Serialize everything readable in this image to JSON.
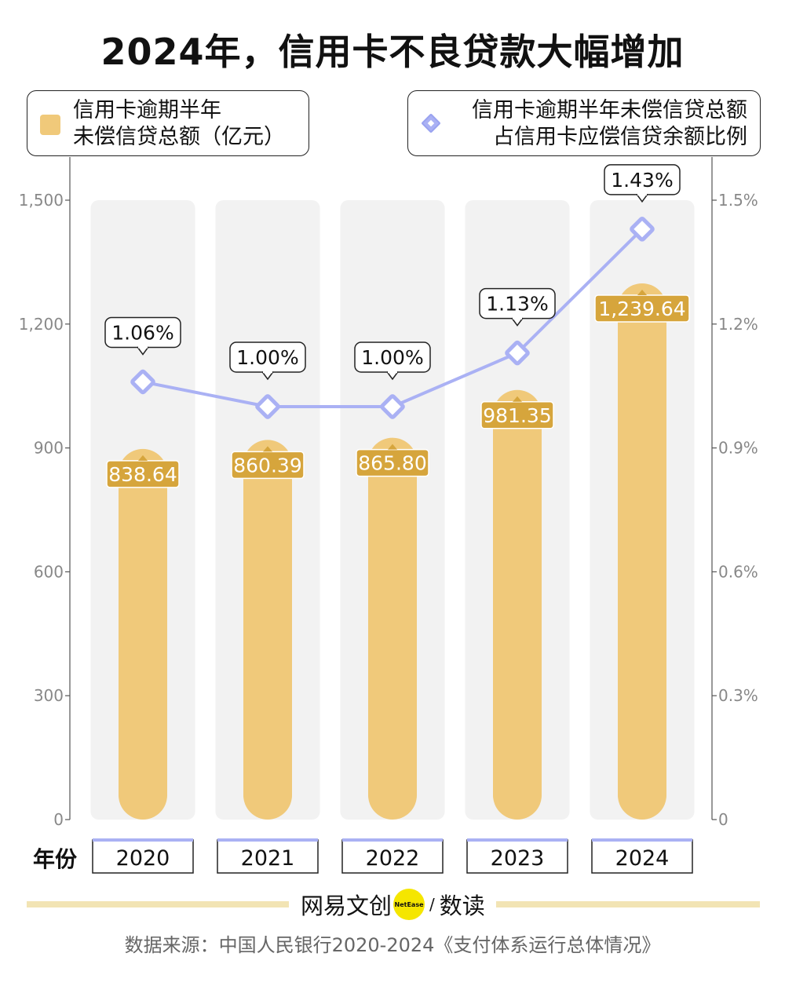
{
  "title": "2024年，信用卡不良贷款大幅增加",
  "legend": {
    "bar_line1": "信用卡逾期半年",
    "bar_line2": "未偿信贷总额（亿元）",
    "line_line1": "信用卡逾期半年未偿信贷总额",
    "line_line2": "占信用卡应偿信贷余额比例"
  },
  "xaxis_label": "年份",
  "footer": {
    "brand_left": "网易文创",
    "brand_mark": "NetEase",
    "brand_slash": "/",
    "brand_right": "数读",
    "source": "数据来源：中国人民银行2020-2024《支付体系运行总体情况》"
  },
  "colors": {
    "bar": "#f0c97a",
    "bar_label": "#d6a53c",
    "column_bg": "#f2f2f2",
    "line": "#aab1f4",
    "axis_text": "#888888"
  },
  "chart_data": {
    "type": "bar",
    "categories": [
      "2020",
      "2021",
      "2022",
      "2023",
      "2024"
    ],
    "series": [
      {
        "values": [
          838.64,
          860.39,
          865.8,
          981.35,
          1239.64
        ],
        "labels": [
          "838.64",
          "860.39",
          "865.80",
          "981.35",
          "1,239.64"
        ],
        "axis": "left"
      },
      {
        "type": "line",
        "values": [
          1.06,
          1.0,
          1.0,
          1.13,
          1.43
        ],
        "labels": [
          "1.06%",
          "1.00%",
          "1.00%",
          "1.13%",
          "1.43%"
        ],
        "axis": "right"
      }
    ],
    "ylim": [
      0,
      1500
    ],
    "yticks": [
      "0",
      "300",
      "600",
      "900",
      "1,200",
      "1,500"
    ],
    "y2lim": [
      0,
      1.5
    ],
    "y2ticks": [
      "0",
      "0.3%",
      "0.6%",
      "0.9%",
      "1.2%",
      "1.5%"
    ],
    "grid": false,
    "legend": "top"
  }
}
